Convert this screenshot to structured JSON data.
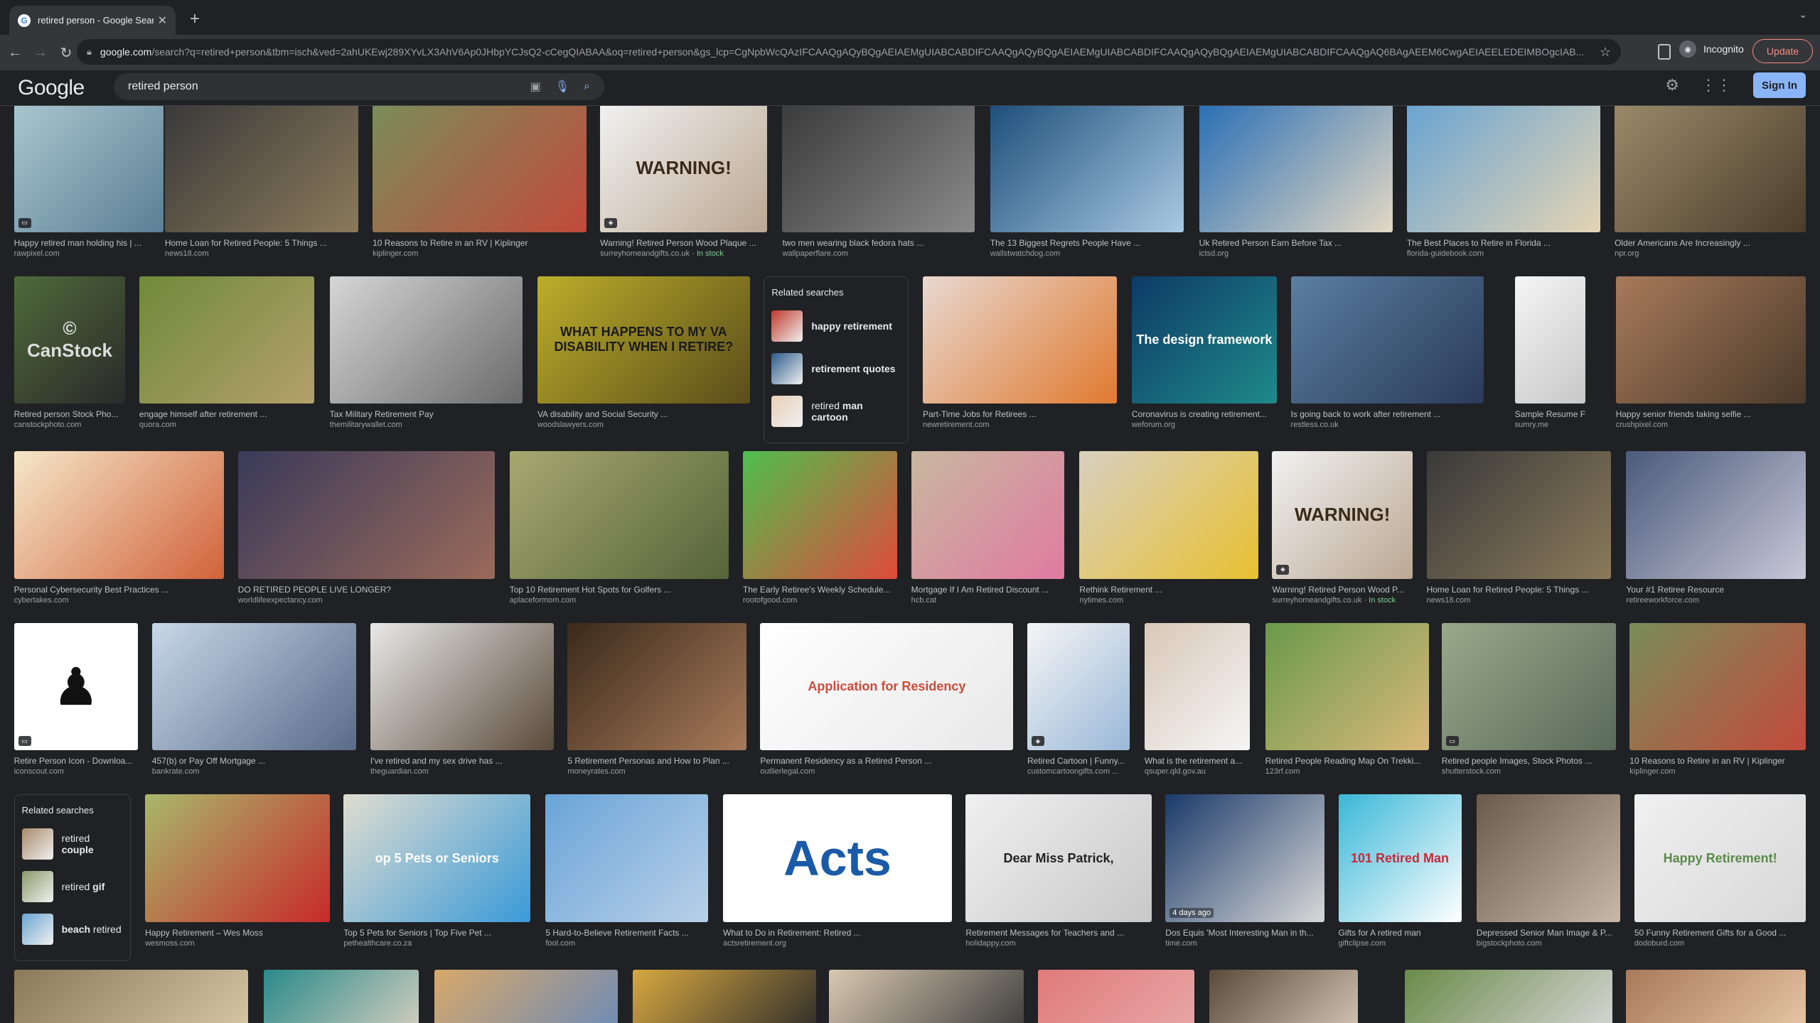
{
  "tab": {
    "title": "retired person - Google Search",
    "close": "✕",
    "new": "+",
    "menu": "⌄"
  },
  "toolbar": {
    "back": "←",
    "forward": "→",
    "reload": "↻",
    "url_host": "google.com",
    "url_rest": "/search?q=retired+person&tbm=isch&ved=2ahUKEwj289XYvLX3AhV6Ap0JHbpYCJsQ2-cCegQIABAA&oq=retired+person&gs_lcp=CgNpbWcQAzIFCAAQgAQyBQgAEIAEMgUIABCABDIFCAAQgAQyBQgAEIAEMgUIABCABDIFCAAQgAQyBQgAEIAEMgUIABCABDIFCAAQgAQ6BAgAEEM6CwgAEIAEELEDEIMBOgcIAB...",
    "incognito": "Incognito",
    "update": "Update"
  },
  "header": {
    "logo": "Google",
    "query": "retired person",
    "signin": "Sign In"
  },
  "results": [
    {
      "cap": "Happy retired man holding his | ...",
      "src": "rawpixel.com",
      "badge": "▭",
      "c1": "#a9c6cf",
      "c2": "#5b7f94"
    },
    {
      "cap": "Home Loan for Retired People: 5 Things ...",
      "src": "news18.com",
      "c1": "#3a3a3a",
      "c2": "#8a7a5a"
    },
    {
      "cap": "10 Reasons to Retire in an RV | Kiplinger",
      "src": "kiplinger.com",
      "c1": "#7a8d5a",
      "c2": "#c24a3a"
    },
    {
      "cap": "Warning! Retired Person Wood Plaque ...",
      "src": "surreyhomeandgifts.co.uk",
      "stock": "In stock",
      "badge": "◈",
      "c1": "#f1f1f1",
      "c2": "#bba893",
      "overlay": "WARNING!",
      "ocolor": "#3a2a1a"
    },
    {
      "cap": "two men wearing black fedora hats ...",
      "src": "wallpaperflare.com",
      "c1": "#3b3b3b",
      "c2": "#8a8a8a"
    },
    {
      "cap": "The 13 Biggest Regrets People Have ...",
      "src": "wallstwatchdog.com",
      "c1": "#1d4f7a",
      "c2": "#a9c9e3"
    },
    {
      "cap": "Uk Retired Person Earn Before Tax ...",
      "src": "ictsd.org",
      "c1": "#2a6fb5",
      "c2": "#e3d8c3"
    },
    {
      "cap": "The Best Places to Retire in Florida ...",
      "src": "florida-guidebook.com",
      "c1": "#6aa4d2",
      "c2": "#e4d4b3"
    },
    {
      "cap": "Older Americans Are Increasingly ...",
      "src": "npr.org",
      "c1": "#9a8a6a",
      "c2": "#4a3d2a"
    },
    {
      "cap": "Retired person Stock Pho...",
      "src": "canstockphoto.com",
      "c1": "#4f6a3a",
      "c2": "#2a2a2a",
      "overlay": "© CanStock",
      "ocolor": "#dddddd"
    },
    {
      "cap": "engage himself after retirement ...",
      "src": "quora.com",
      "c1": "#6f8a3a",
      "c2": "#b4a06a"
    },
    {
      "cap": "Tax Military Retirement Pay",
      "src": "themilitarywallet.com",
      "c1": "#d6d6d6",
      "c2": "#6a6a6a"
    },
    {
      "cap": "VA disability and Social Security ...",
      "src": "woodslawyers.com",
      "c1": "#bcae2a",
      "c2": "#5a4d1a",
      "overlay": "WHAT HAPPENS TO MY VA DISABILITY WHEN I RETIRE?",
      "ocolor": "#1a1a1a"
    },
    {
      "cap": "Part-Time Jobs for Retirees ...",
      "src": "newretirement.com",
      "c1": "#e8d8d0",
      "c2": "#e07a30"
    },
    {
      "cap": "Coronavirus is creating retirement...",
      "src": "weforum.org",
      "c1": "#0d3a66",
      "c2": "#1f8a8a",
      "overlay": "The design framework",
      "ocolor": "#ffffff"
    },
    {
      "cap": "Is going back to work after retirement ...",
      "src": "restless.co.uk",
      "c1": "#5a7fa0",
      "c2": "#2a3a5a"
    },
    {
      "cap": "Sample Resume For Re...",
      "src": "sumry.me",
      "c1": "#f5f5f5",
      "c2": "#c8c8c8"
    },
    {
      "cap": "Happy senior friends taking selfie ...",
      "src": "crushpixel.com",
      "c1": "#a87a5a",
      "c2": "#4a3a2a"
    },
    {
      "cap": "Personal Cybersecurity Best Practices ...",
      "src": "cybertakes.com",
      "c1": "#f5e7c9",
      "c2": "#d1623a"
    },
    {
      "cap": "DO RETIRED PEOPLE LIVE LONGER?",
      "src": "worldlifeexpectancy.com",
      "c1": "#3a3a5a",
      "c2": "#9a6a5a"
    },
    {
      "cap": "Top 10 Retirement Hot Spots for Golfers ...",
      "src": "aplaceformom.com",
      "c1": "#a8a870",
      "c2": "#55643a"
    },
    {
      "cap": "The Early Retiree's Weekly Schedule...",
      "src": "rootofgood.com",
      "c1": "#4fbf4f",
      "c2": "#e04a3a"
    },
    {
      "cap": "Mortgage If I Am Retired Discount ...",
      "src": "hcb.cat",
      "c1": "#c8b8a0",
      "c2": "#e07aa0"
    },
    {
      "cap": "Rethink Retirement ...",
      "src": "nytimes.com",
      "c1": "#d8d0c0",
      "c2": "#e8c030"
    },
    {
      "cap": "Warning! Retired Person Wood P...",
      "src": "surreyhomeandgifts.co.uk",
      "stock": "In stock",
      "badge": "◈",
      "c1": "#f1f1f1",
      "c2": "#bba893",
      "overlay": "WARNING!",
      "ocolor": "#3a2a1a"
    },
    {
      "cap": "Home Loan for Retired People: 5 Things ...",
      "src": "news18.com",
      "c1": "#3a3a3a",
      "c2": "#8a7a5a"
    },
    {
      "cap": "Your #1 Retiree Resource",
      "src": "retireeworkforce.com",
      "c1": "#4a5a7a",
      "c2": "#c8c8d8"
    },
    {
      "cap": "Retire Person Icon - Downloa...",
      "src": "iconscout.com",
      "badge": "▭",
      "c1": "#ffffff",
      "c2": "#ffffff",
      "overlay": "♟",
      "ocolor": "#111111"
    },
    {
      "cap": "457(b) or Pay Off Mortgage ...",
      "src": "bankrate.com",
      "c1": "#c8d8e8",
      "c2": "#5a6a8a"
    },
    {
      "cap": "I've retired and my sex drive has ...",
      "src": "theguardian.com",
      "c1": "#e8e8e8",
      "c2": "#5a4a3a"
    },
    {
      "cap": "5 Retirement Personas and How to Plan ...",
      "src": "moneyrates.com",
      "c1": "#3a2a1a",
      "c2": "#a87a5a"
    },
    {
      "cap": "Permanent Residency as a Retired Person ...",
      "src": "outlierlegal.com",
      "c1": "#ffffff",
      "c2": "#e8e8e8",
      "overlay": "Application for Residency",
      "ocolor": "#d04a3a"
    },
    {
      "cap": "Retired Cartoon | Funny...",
      "src": "customcartoongifts.com ...",
      "badge": "◈",
      "c1": "#f5f5f5",
      "c2": "#9ab8d8"
    },
    {
      "cap": "What is the retirement a...",
      "src": "qsuper.qld.gov.au",
      "c1": "#d8c8b8",
      "c2": "#f5f5f5"
    },
    {
      "cap": "Retired People Reading Map On Trekki...",
      "src": "123rf.com",
      "c1": "#6a9a4a",
      "c2": "#d8b87a"
    },
    {
      "cap": "Retired people Images, Stock Photos ...",
      "src": "shutterstock.com",
      "badge": "▭",
      "c1": "#9aa88a",
      "c2": "#5a6a5a"
    },
    {
      "cap": "10 Reasons to Retire in an RV | Kiplinger",
      "src": "kiplinger.com",
      "c1": "#7a8d5a",
      "c2": "#c24a3a"
    },
    {
      "cap": "Happy Retirement – Wes Moss",
      "src": "wesmoss.com",
      "c1": "#a8b86a",
      "c2": "#c82a2a"
    },
    {
      "cap": "Top 5 Pets for Seniors | Top Five Pet ...",
      "src": "pethealthcare.co.za",
      "c1": "#e0ddd0",
      "c2": "#3a9ad8",
      "overlay": "op 5 Pets or Seniors",
      "ocolor": "#ffffff"
    },
    {
      "cap": "5 Hard-to-Believe Retirement Facts ...",
      "src": "fool.com",
      "c1": "#6aa4d8",
      "c2": "#b8d0e8"
    },
    {
      "cap": "What to Do in Retirement: Retired ...",
      "src": "actsretirement.org",
      "c1": "#ffffff",
      "c2": "#ffffff",
      "overlay": "Acts",
      "ocolor": "#1a5aa8"
    },
    {
      "cap": "Retirement Messages for Teachers and ...",
      "src": "holidappy.com",
      "c1": "#f0f0f0",
      "c2": "#c8c8c8",
      "overlay": "Dear Miss Patrick,",
      "ocolor": "#222222"
    },
    {
      "cap": "Dos Equis 'Most Interesting Man in th...",
      "src": "time.com",
      "ago": "4 days ago",
      "c1": "#1a3a6a",
      "c2": "#d8d8d8"
    },
    {
      "cap": "Gifts for A retired man",
      "src": "giftclipse.com",
      "c1": "#3ab8d8",
      "c2": "#ffffff",
      "overlay": "101 Retired Man",
      "ocolor": "#c82a3a"
    },
    {
      "cap": "Depressed Senior Man Image & P...",
      "src": "bigstockphoto.com",
      "c1": "#6a5a4a",
      "c2": "#c8b8a8"
    },
    {
      "cap": "50 Funny Retirement Gifts for a Good ...",
      "src": "dodoburd.com",
      "c1": "#f0f0f0",
      "c2": "#d8d8d8",
      "overlay": "Happy Retirement!",
      "ocolor": "#5a8a4a"
    },
    {
      "cap": "",
      "src": "",
      "c1": "#8a7a5a",
      "c2": "#d8c8a8"
    },
    {
      "cap": "",
      "src": "",
      "c1": "#2a8a8a",
      "c2": "#d8d0c0"
    },
    {
      "cap": "",
      "src": "",
      "c1": "#d8a86a",
      "c2": "#6a8ab8"
    },
    {
      "cap": "",
      "src": "",
      "c1": "#d8a840",
      "c2": "#2a2a2a"
    },
    {
      "cap": "",
      "src": "",
      "c1": "#d8c8b0",
      "c2": "#3a3a3a"
    },
    {
      "cap": "",
      "src": "",
      "c1": "#e07a7a",
      "c2": "#e8a8a8"
    },
    {
      "cap": "",
      "src": "",
      "c1": "#5a4a3a",
      "c2": "#d8c8b8"
    },
    {
      "cap": "",
      "src": "",
      "c1": "#6a8a4a",
      "c2": "#d8d8d8"
    },
    {
      "cap": "",
      "src": "",
      "c1": "#a87a5a",
      "c2": "#e8c8a8"
    }
  ],
  "related1": {
    "title": "Related searches",
    "items": [
      {
        "pre": "",
        "bold": "happy retirement",
        "c": "#c0392b"
      },
      {
        "pre": "",
        "bold": "retirement quotes",
        "c": "#2b5a8a"
      },
      {
        "pre": "retired ",
        "bold": "man cartoon",
        "c": "#e8d0b8"
      }
    ]
  },
  "related2": {
    "title": "Related searches",
    "items": [
      {
        "pre": "retired ",
        "bold": "couple",
        "c": "#a88a6a"
      },
      {
        "pre": "retired ",
        "bold": "gif",
        "c": "#8a9a6a"
      },
      {
        "pre": "",
        "bold": "beach",
        "post": " retired",
        "c": "#6aa4d2"
      }
    ]
  }
}
